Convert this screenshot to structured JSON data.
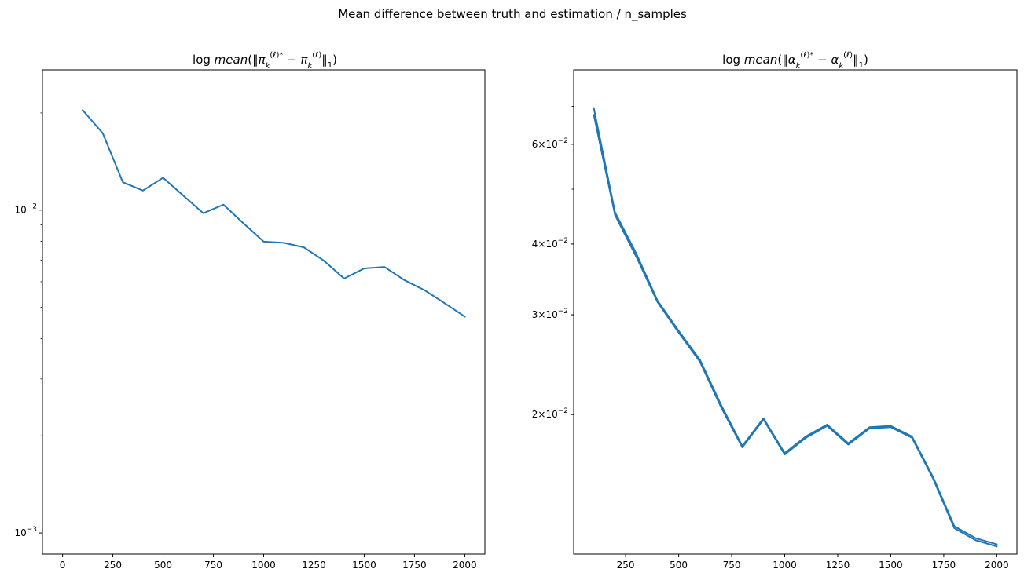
{
  "figure": {
    "suptitle": "Mean difference between truth and estimation / n_samples"
  },
  "chart_data": [
    {
      "type": "line",
      "title": "log mean(‖π_k^(ℓ)* − π_k^(ℓ)‖_1)",
      "xlabel": "",
      "ylabel": "",
      "yscale": "log",
      "xlim": [
        -100,
        2100
      ],
      "ylim": [
        0.00086,
        0.0272
      ],
      "grid": false,
      "xticks": [
        0,
        250,
        500,
        750,
        1000,
        1250,
        1500,
        1750,
        2000
      ],
      "yticks_major": [
        {
          "value": 0.01,
          "label": "10",
          "exp": "−2"
        },
        {
          "value": 0.001,
          "label": "10",
          "exp": "−3"
        }
      ],
      "yticks_minor": [
        0.002,
        0.003,
        0.004,
        0.005,
        0.006,
        0.007,
        0.008,
        0.009,
        0.02
      ],
      "color": "#1f77b4",
      "series": [
        {
          "x": [
            100,
            200,
            300,
            400,
            500,
            600,
            700,
            800,
            900,
            1000,
            1100,
            1200,
            1300,
            1400,
            1500,
            1600,
            1700,
            1800,
            1900,
            2000
          ],
          "values": [
            0.0204,
            0.0173,
            0.0122,
            0.0115,
            0.0126,
            0.0111,
            0.00978,
            0.0104,
            0.0091,
            0.00799,
            0.00792,
            0.00767,
            0.00697,
            0.00614,
            0.0066,
            0.00667,
            0.00607,
            0.00565,
            0.00515,
            0.00468
          ]
        }
      ]
    },
    {
      "type": "line",
      "title": "log mean(‖α_k^(ℓ)* − α_k^(ℓ)‖_1)",
      "xlabel": "",
      "ylabel": "",
      "yscale": "log",
      "xlim": [
        5,
        2095
      ],
      "ylim": [
        0.01134,
        0.0812
      ],
      "grid": false,
      "xticks": [
        250,
        500,
        750,
        1000,
        1250,
        1500,
        1750,
        2000
      ],
      "yticks_labeled": [
        {
          "value": 0.06,
          "label": "6×10",
          "exp": "−2"
        },
        {
          "value": 0.04,
          "label": "4×10",
          "exp": "−2"
        },
        {
          "value": 0.03,
          "label": "3×10",
          "exp": "−2"
        },
        {
          "value": 0.02,
          "label": "2×10",
          "exp": "−2"
        }
      ],
      "yticks_minor": [
        0.05,
        0.07
      ],
      "color": "#1f77b4",
      "series": [
        {
          "x": [
            100,
            200,
            300,
            400,
            500,
            600,
            700,
            800,
            900,
            1000,
            1100,
            1200,
            1300,
            1400,
            1500,
            1600,
            1700,
            1800,
            1900,
            2000
          ],
          "values": [
            0.0695,
            0.0455,
            0.0385,
            0.0318,
            0.0281,
            0.025,
            0.0208,
            0.0176,
            0.0197,
            0.0171,
            0.0183,
            0.0192,
            0.0178,
            0.019,
            0.0191,
            0.0183,
            0.0155,
            0.0127,
            0.0121,
            0.0118
          ]
        },
        {
          "x": [
            100,
            200,
            300,
            400,
            500,
            600,
            700,
            800,
            900,
            1000,
            1100,
            1200,
            1300,
            1400,
            1500,
            1600,
            1700,
            1800,
            1900,
            2000
          ],
          "values": [
            0.0676,
            0.045,
            0.038,
            0.0316,
            0.0279,
            0.0248,
            0.0206,
            0.0175,
            0.0196,
            0.017,
            0.0182,
            0.0191,
            0.0177,
            0.0189,
            0.019,
            0.0182,
            0.0154,
            0.0126,
            0.012,
            0.0117
          ]
        }
      ]
    }
  ]
}
